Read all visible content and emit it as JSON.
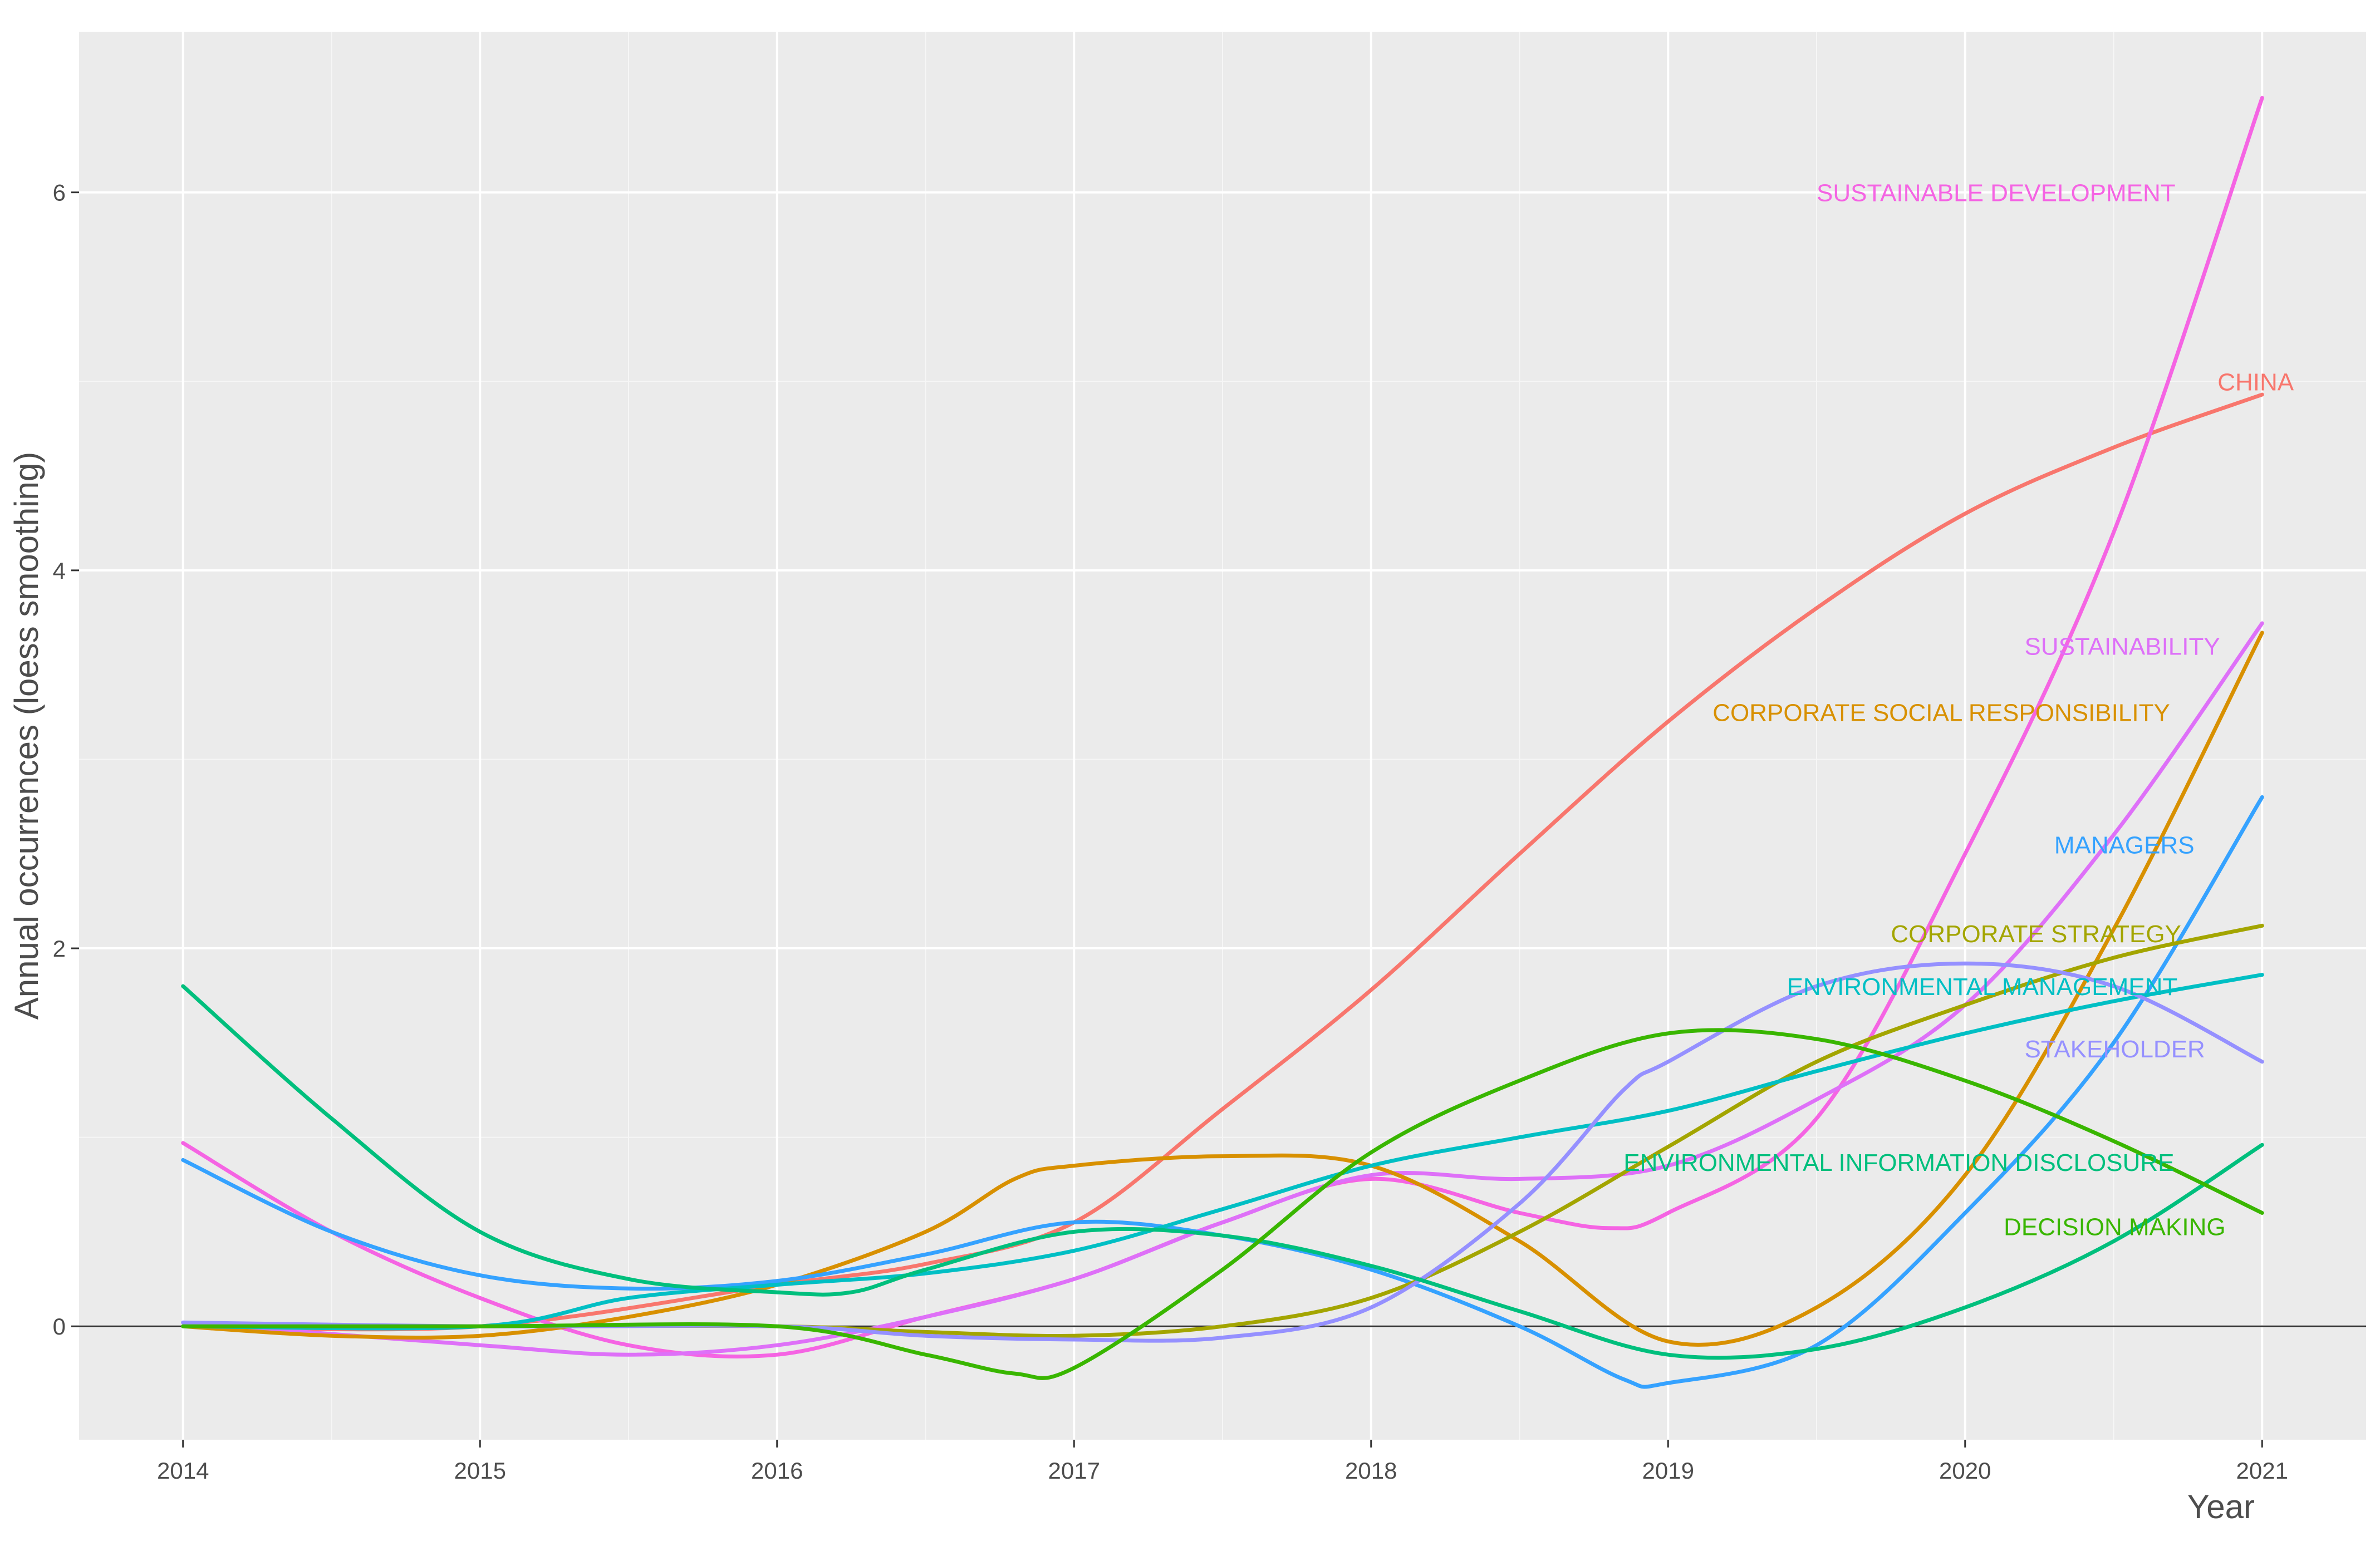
{
  "chart_data": {
    "type": "line",
    "title": "",
    "xlabel": "Year",
    "ylabel": "Annual occurrences (loess smoothing)",
    "xlim": [
      2013.65,
      2021.35
    ],
    "ylim": [
      -0.6,
      6.85
    ],
    "xticks": [
      2014,
      2015,
      2016,
      2017,
      2018,
      2019,
      2020,
      2021
    ],
    "yticks": [
      0,
      2,
      4,
      6
    ],
    "grid": true,
    "zero_line": 0,
    "legend": "direct-labels",
    "series": [
      {
        "name": "CHINA",
        "color": "#F8766D",
        "label_at": [
          2020.85,
          5.0
        ],
        "points": [
          [
            2014,
            0
          ],
          [
            2015,
            0
          ],
          [
            2016,
            0.22
          ],
          [
            2016.5,
            0.33
          ],
          [
            2017,
            0.55
          ],
          [
            2017.5,
            1.15
          ],
          [
            2018,
            1.78
          ],
          [
            2018.5,
            2.5
          ],
          [
            2019,
            3.2
          ],
          [
            2019.5,
            3.8
          ],
          [
            2020,
            4.3
          ],
          [
            2020.5,
            4.65
          ],
          [
            2021,
            4.93
          ]
        ]
      },
      {
        "name": "SUSTAINABLE DEVELOPMENT",
        "color": "#F564E3",
        "label_at": [
          2019.5,
          6.0
        ],
        "points": [
          [
            2014,
            0.97
          ],
          [
            2014.5,
            0.5
          ],
          [
            2015,
            0.15
          ],
          [
            2015.5,
            -0.1
          ],
          [
            2016,
            -0.15
          ],
          [
            2016.5,
            0.05
          ],
          [
            2017,
            0.25
          ],
          [
            2017.5,
            0.55
          ],
          [
            2018,
            0.78
          ],
          [
            2018.5,
            0.6
          ],
          [
            2018.8,
            0.52
          ],
          [
            2019,
            0.6
          ],
          [
            2019.5,
            1.1
          ],
          [
            2020,
            2.5
          ],
          [
            2020.5,
            4.2
          ],
          [
            2021,
            6.5
          ]
        ]
      },
      {
        "name": "SUSTAINABILITY",
        "color": "#DE70F8",
        "label_at": [
          2020.2,
          3.6
        ],
        "points": [
          [
            2014,
            0.02
          ],
          [
            2015,
            -0.1
          ],
          [
            2015.5,
            -0.15
          ],
          [
            2016,
            -0.1
          ],
          [
            2016.5,
            0.05
          ],
          [
            2017,
            0.25
          ],
          [
            2017.5,
            0.55
          ],
          [
            2018,
            0.8
          ],
          [
            2018.5,
            0.78
          ],
          [
            2019,
            0.85
          ],
          [
            2019.5,
            1.2
          ],
          [
            2020,
            1.7
          ],
          [
            2020.5,
            2.6
          ],
          [
            2021,
            3.72
          ]
        ]
      },
      {
        "name": "CORPORATE SOCIAL RESPONSIBILITY",
        "color": "#D89000",
        "label_at": [
          2019.15,
          3.25
        ],
        "points": [
          [
            2014,
            0
          ],
          [
            2014.5,
            -0.05
          ],
          [
            2015,
            -0.05
          ],
          [
            2015.5,
            0.05
          ],
          [
            2016,
            0.22
          ],
          [
            2016.5,
            0.5
          ],
          [
            2016.8,
            0.78
          ],
          [
            2017,
            0.85
          ],
          [
            2017.5,
            0.9
          ],
          [
            2018,
            0.85
          ],
          [
            2018.5,
            0.45
          ],
          [
            2019,
            -0.08
          ],
          [
            2019.5,
            0.1
          ],
          [
            2020,
            0.8
          ],
          [
            2020.5,
            2.1
          ],
          [
            2021,
            3.67
          ]
        ]
      },
      {
        "name": "MANAGERS",
        "color": "#35A2FF",
        "label_at": [
          2020.3,
          2.55
        ],
        "points": [
          [
            2014,
            0.88
          ],
          [
            2014.5,
            0.5
          ],
          [
            2015,
            0.27
          ],
          [
            2015.5,
            0.2
          ],
          [
            2016,
            0.24
          ],
          [
            2016.5,
            0.38
          ],
          [
            2017,
            0.55
          ],
          [
            2017.5,
            0.48
          ],
          [
            2018,
            0.3
          ],
          [
            2018.5,
            0
          ],
          [
            2018.85,
            -0.28
          ],
          [
            2019,
            -0.3
          ],
          [
            2019.5,
            -0.1
          ],
          [
            2020,
            0.6
          ],
          [
            2020.5,
            1.5
          ],
          [
            2021,
            2.8
          ]
        ]
      },
      {
        "name": "CORPORATE STRATEGY",
        "color": "#A3A500",
        "label_at": [
          2019.75,
          2.08
        ],
        "points": [
          [
            2014,
            0
          ],
          [
            2015,
            0
          ],
          [
            2016,
            0
          ],
          [
            2016.5,
            -0.03
          ],
          [
            2017,
            -0.05
          ],
          [
            2017.5,
            0
          ],
          [
            2018,
            0.15
          ],
          [
            2018.5,
            0.5
          ],
          [
            2019,
            0.95
          ],
          [
            2019.5,
            1.4
          ],
          [
            2020,
            1.7
          ],
          [
            2020.5,
            1.95
          ],
          [
            2021,
            2.12
          ]
        ]
      },
      {
        "name": "ENVIRONMENTAL MANAGEMENT",
        "color": "#00BFC4",
        "label_at": [
          2019.4,
          1.8
        ],
        "points": [
          [
            2014,
            0
          ],
          [
            2015,
            0
          ],
          [
            2015.5,
            0.15
          ],
          [
            2016,
            0.22
          ],
          [
            2016.5,
            0.28
          ],
          [
            2017,
            0.4
          ],
          [
            2017.5,
            0.62
          ],
          [
            2018,
            0.85
          ],
          [
            2018.5,
            1
          ],
          [
            2019,
            1.14
          ],
          [
            2019.5,
            1.35
          ],
          [
            2020,
            1.55
          ],
          [
            2020.5,
            1.72
          ],
          [
            2021,
            1.86
          ]
        ]
      },
      {
        "name": "STAKEHOLDER",
        "color": "#9590FF",
        "label_at": [
          2020.2,
          1.47
        ],
        "points": [
          [
            2014,
            0.02
          ],
          [
            2015,
            0
          ],
          [
            2016,
            0
          ],
          [
            2016.5,
            -0.05
          ],
          [
            2017,
            -0.07
          ],
          [
            2017.5,
            -0.06
          ],
          [
            2018,
            0.1
          ],
          [
            2018.5,
            0.65
          ],
          [
            2018.85,
            1.25
          ],
          [
            2019,
            1.4
          ],
          [
            2019.5,
            1.8
          ],
          [
            2020,
            1.92
          ],
          [
            2020.5,
            1.8
          ],
          [
            2021,
            1.4
          ]
        ]
      },
      {
        "name": "ENVIRONMENTAL INFORMATION DISCLOSURE",
        "color": "#00BF7D",
        "label_at": [
          2018.85,
          0.87
        ],
        "points": [
          [
            2014,
            1.8
          ],
          [
            2014.5,
            1.1
          ],
          [
            2015,
            0.5
          ],
          [
            2015.5,
            0.25
          ],
          [
            2016,
            0.18
          ],
          [
            2016.25,
            0.18
          ],
          [
            2016.5,
            0.3
          ],
          [
            2017,
            0.5
          ],
          [
            2017.5,
            0.48
          ],
          [
            2018,
            0.32
          ],
          [
            2018.5,
            0.08
          ],
          [
            2019,
            -0.15
          ],
          [
            2019.5,
            -0.12
          ],
          [
            2020,
            0.1
          ],
          [
            2020.5,
            0.45
          ],
          [
            2021,
            0.96
          ]
        ]
      },
      {
        "name": "DECISION MAKING",
        "color": "#39B600",
        "label_at": [
          2020.13,
          0.53
        ],
        "points": [
          [
            2014,
            0
          ],
          [
            2015,
            0
          ],
          [
            2016,
            0
          ],
          [
            2016.5,
            -0.15
          ],
          [
            2016.8,
            -0.25
          ],
          [
            2017,
            -0.22
          ],
          [
            2017.5,
            0.3
          ],
          [
            2018,
            0.92
          ],
          [
            2018.5,
            1.3
          ],
          [
            2019,
            1.55
          ],
          [
            2019.5,
            1.52
          ],
          [
            2020,
            1.3
          ],
          [
            2020.5,
            0.98
          ],
          [
            2021,
            0.6
          ]
        ]
      }
    ]
  }
}
